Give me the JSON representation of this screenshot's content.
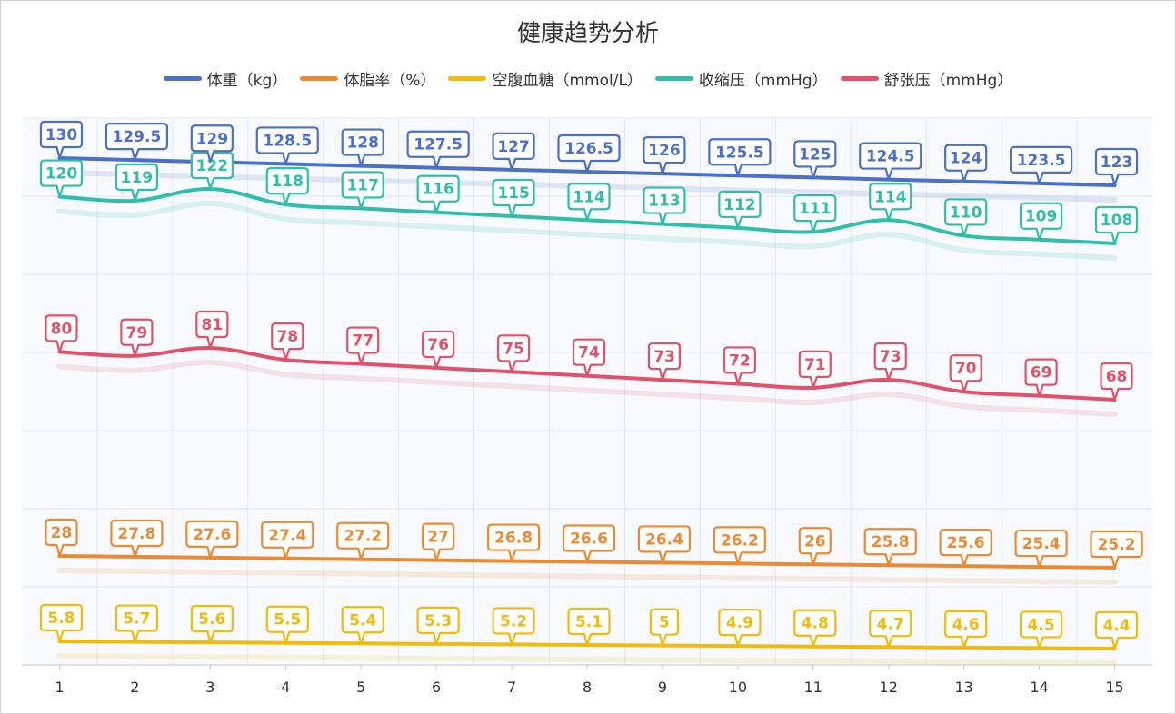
{
  "chart_data": {
    "type": "line",
    "title": "健康趋势分析",
    "categories": [
      "1",
      "2",
      "3",
      "4",
      "5",
      "6",
      "7",
      "8",
      "9",
      "10",
      "11",
      "12",
      "13",
      "14",
      "15"
    ],
    "grid": true,
    "legend_position": "top",
    "series": [
      {
        "name": "体重（kg）",
        "color": "#4a70c8",
        "values": [
          130,
          129.5,
          129,
          128.5,
          128,
          127.5,
          127,
          126.5,
          126,
          125.5,
          125,
          124.5,
          124,
          123.5,
          123
        ]
      },
      {
        "name": "体脂率（%）",
        "color": "#ec8a33",
        "values": [
          28,
          27.8,
          27.6,
          27.4,
          27.2,
          27,
          26.8,
          26.6,
          26.4,
          26.2,
          26,
          25.8,
          25.6,
          25.4,
          25.2
        ]
      },
      {
        "name": "空腹血糖（mmol/L）",
        "color": "#f1bb0c",
        "values": [
          5.8,
          5.7,
          5.6,
          5.5,
          5.4,
          5.3,
          5.2,
          5.1,
          5,
          4.9,
          4.8,
          4.7,
          4.6,
          4.5,
          4.4
        ]
      },
      {
        "name": "收缩压（mmHg）",
        "color": "#2dbfa9",
        "values": [
          120,
          119,
          122,
          118,
          117,
          116,
          115,
          114,
          113,
          112,
          111,
          114,
          110,
          109,
          108
        ]
      },
      {
        "name": "舒张压（mmHg）",
        "color": "#e2506a",
        "values": [
          80,
          79,
          81,
          78,
          77,
          76,
          75,
          74,
          73,
          72,
          71,
          73,
          70,
          69,
          68
        ]
      }
    ]
  }
}
